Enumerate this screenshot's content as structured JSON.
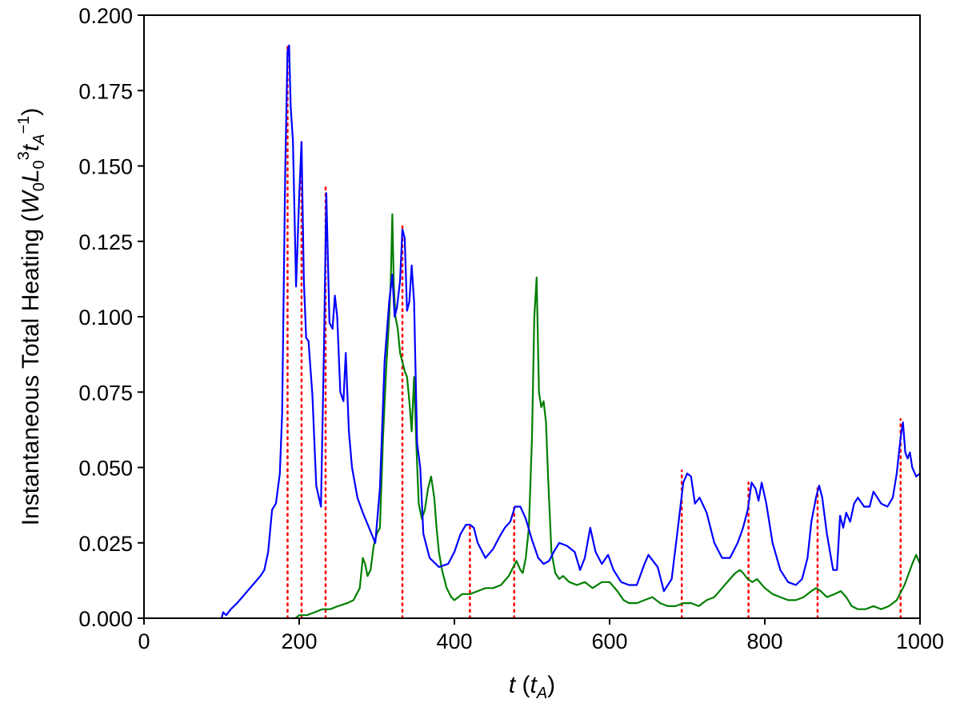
{
  "chart_data": {
    "type": "line",
    "xlabel": "t (t_A)",
    "ylabel": "Instantaneous Total Heating  (W_0 L_0^3 t_A^-1)",
    "xlim": [
      0,
      1000
    ],
    "ylim": [
      0,
      0.2
    ],
    "xticks": [
      "0",
      "200",
      "400",
      "600",
      "800",
      "1000"
    ],
    "yticks": [
      "0.000",
      "0.025",
      "0.050",
      "0.075",
      "0.100",
      "0.125",
      "0.150",
      "0.175",
      "0.200"
    ],
    "grid": false,
    "legend": "none",
    "series": [
      {
        "color": "#0000ff",
        "x": [
          100,
          102,
          106,
          112,
          120,
          130,
          140,
          150,
          155,
          160,
          165,
          170,
          175,
          178,
          182,
          185,
          187,
          189,
          192,
          196,
          200,
          203,
          206,
          209,
          212,
          217,
          222,
          228,
          232,
          235,
          239,
          243,
          246,
          249,
          253,
          257,
          260,
          264,
          268,
          275,
          282,
          290,
          298,
          304,
          310,
          316,
          320,
          323,
          326,
          330,
          333,
          336,
          339,
          342,
          345,
          348,
          352,
          356,
          360,
          368,
          380,
          392,
          400,
          408,
          415,
          420,
          425,
          430,
          440,
          450,
          458,
          465,
          472,
          478,
          485,
          492,
          500,
          508,
          515,
          522,
          528,
          535,
          545,
          555,
          562,
          568,
          575,
          582,
          590,
          598,
          605,
          615,
          625,
          635,
          645,
          650,
          656,
          662,
          670,
          680,
          688,
          695,
          700,
          705,
          710,
          716,
          725,
          735,
          745,
          755,
          765,
          772,
          778,
          783,
          788,
          792,
          796,
          802,
          810,
          820,
          830,
          840,
          848,
          855,
          860,
          866,
          870,
          874,
          880,
          888,
          893,
          897,
          901,
          905,
          910,
          915,
          920,
          928,
          935,
          940,
          945,
          950,
          958,
          965,
          970,
          975,
          978,
          981,
          984,
          987,
          990,
          995,
          1000
        ],
        "y": [
          0.0,
          0.002,
          0.001,
          0.003,
          0.005,
          0.008,
          0.011,
          0.014,
          0.016,
          0.022,
          0.036,
          0.038,
          0.048,
          0.068,
          0.148,
          0.188,
          0.19,
          0.17,
          0.158,
          0.11,
          0.14,
          0.158,
          0.112,
          0.093,
          0.092,
          0.074,
          0.044,
          0.037,
          0.09,
          0.141,
          0.098,
          0.096,
          0.107,
          0.1,
          0.075,
          0.072,
          0.088,
          0.062,
          0.05,
          0.04,
          0.035,
          0.03,
          0.025,
          0.043,
          0.085,
          0.105,
          0.114,
          0.1,
          0.103,
          0.112,
          0.129,
          0.126,
          0.102,
          0.105,
          0.117,
          0.105,
          0.058,
          0.05,
          0.028,
          0.02,
          0.017,
          0.018,
          0.022,
          0.028,
          0.031,
          0.031,
          0.03,
          0.025,
          0.02,
          0.023,
          0.027,
          0.03,
          0.032,
          0.037,
          0.037,
          0.033,
          0.026,
          0.02,
          0.018,
          0.019,
          0.022,
          0.025,
          0.024,
          0.022,
          0.016,
          0.02,
          0.03,
          0.022,
          0.018,
          0.021,
          0.016,
          0.012,
          0.011,
          0.011,
          0.018,
          0.021,
          0.019,
          0.017,
          0.009,
          0.013,
          0.03,
          0.045,
          0.048,
          0.047,
          0.038,
          0.04,
          0.035,
          0.025,
          0.02,
          0.02,
          0.025,
          0.03,
          0.036,
          0.045,
          0.043,
          0.039,
          0.045,
          0.038,
          0.025,
          0.016,
          0.012,
          0.011,
          0.013,
          0.02,
          0.032,
          0.04,
          0.044,
          0.04,
          0.028,
          0.016,
          0.016,
          0.034,
          0.03,
          0.035,
          0.032,
          0.038,
          0.04,
          0.037,
          0.037,
          0.042,
          0.04,
          0.038,
          0.037,
          0.04,
          0.048,
          0.06,
          0.065,
          0.055,
          0.053,
          0.055,
          0.05,
          0.047,
          0.048
        ]
      },
      {
        "color": "#007f00",
        "x": [
          195,
          200,
          210,
          220,
          230,
          240,
          250,
          262,
          270,
          278,
          282,
          285,
          288,
          292,
          296,
          300,
          304,
          308,
          312,
          316,
          318,
          320,
          322,
          324,
          327,
          330,
          333,
          336,
          339,
          342,
          345,
          348,
          351,
          354,
          358,
          362,
          366,
          370,
          374,
          377,
          380,
          384,
          390,
          396,
          400,
          405,
          410,
          420,
          430,
          440,
          450,
          460,
          470,
          480,
          485,
          488,
          492,
          496,
          500,
          503,
          506,
          509,
          512,
          515,
          518,
          521,
          525,
          530,
          535,
          540,
          548,
          558,
          568,
          578,
          590,
          600,
          610,
          618,
          625,
          635,
          645,
          655,
          665,
          675,
          685,
          695,
          705,
          715,
          725,
          735,
          745,
          755,
          762,
          768,
          772,
          778,
          784,
          790,
          800,
          810,
          820,
          830,
          840,
          850,
          860,
          866,
          872,
          880,
          890,
          898,
          905,
          912,
          920,
          930,
          940,
          950,
          960,
          970,
          980,
          990,
          995,
          1000
        ],
        "y": [
          0.0,
          0.001,
          0.001,
          0.002,
          0.003,
          0.003,
          0.004,
          0.005,
          0.006,
          0.01,
          0.02,
          0.018,
          0.014,
          0.016,
          0.024,
          0.028,
          0.03,
          0.06,
          0.082,
          0.1,
          0.112,
          0.134,
          0.11,
          0.1,
          0.096,
          0.088,
          0.085,
          0.082,
          0.08,
          0.072,
          0.062,
          0.08,
          0.057,
          0.038,
          0.033,
          0.036,
          0.043,
          0.047,
          0.04,
          0.03,
          0.022,
          0.016,
          0.01,
          0.007,
          0.006,
          0.007,
          0.008,
          0.008,
          0.009,
          0.01,
          0.01,
          0.011,
          0.014,
          0.019,
          0.016,
          0.015,
          0.02,
          0.03,
          0.06,
          0.1,
          0.113,
          0.075,
          0.07,
          0.072,
          0.065,
          0.045,
          0.022,
          0.015,
          0.013,
          0.014,
          0.012,
          0.011,
          0.012,
          0.01,
          0.012,
          0.012,
          0.009,
          0.006,
          0.005,
          0.005,
          0.006,
          0.007,
          0.005,
          0.004,
          0.004,
          0.005,
          0.005,
          0.004,
          0.006,
          0.007,
          0.01,
          0.013,
          0.015,
          0.016,
          0.015,
          0.013,
          0.012,
          0.013,
          0.01,
          0.008,
          0.007,
          0.006,
          0.006,
          0.007,
          0.009,
          0.01,
          0.009,
          0.007,
          0.008,
          0.009,
          0.007,
          0.004,
          0.003,
          0.003,
          0.004,
          0.003,
          0.004,
          0.006,
          0.011,
          0.018,
          0.021,
          0.018
        ]
      }
    ],
    "markers": {
      "color": "#ff0000",
      "style": "dotted",
      "x": [
        185,
        203,
        234,
        333,
        420,
        477,
        693,
        779,
        868,
        975
      ],
      "y": [
        0.19,
        0.159,
        0.143,
        0.13,
        0.031,
        0.037,
        0.049,
        0.045,
        0.044,
        0.066
      ]
    }
  }
}
